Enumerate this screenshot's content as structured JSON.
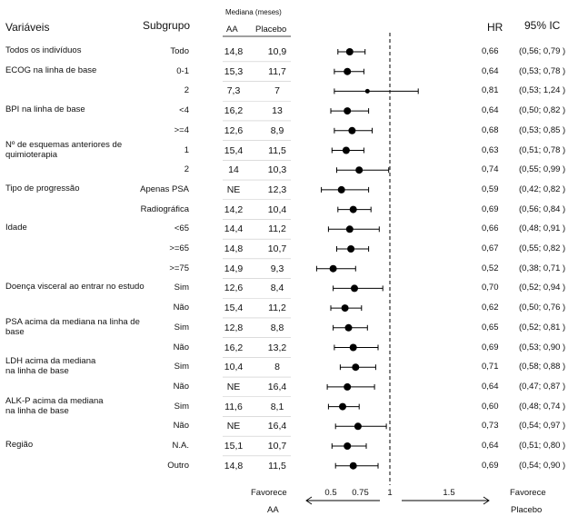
{
  "header": {
    "variables": "Variáveis",
    "subgroup": "Subgrupo",
    "median": "Mediana (meses)",
    "aa": "AA",
    "placebo": "Placebo",
    "hr": "HR",
    "ci95": "95% IC"
  },
  "footer": {
    "favors_left_1": "Favorece",
    "favors_left_2": "AA",
    "favors_right_1": "Favorece",
    "favors_right_2": "Placebo"
  },
  "chart_data": {
    "type": "forest",
    "x_ticks": [
      0.5,
      0.75,
      1,
      1.5
    ],
    "x_tick_labels": [
      "0.5",
      "0.75",
      "1",
      "1.5"
    ],
    "xlim": [
      0.4,
      1.6
    ],
    "reference_line": 1,
    "groups": [
      {
        "label": "Todos os indivíduos",
        "line2": "",
        "row": 0
      },
      {
        "label": "ECOG na linha de base",
        "line2": "",
        "row": 1
      },
      {
        "label": "BPI na linha de base",
        "line2": "",
        "row": 3
      },
      {
        "label": "Nº de esquemas anteriores de",
        "line2": "quimioterapia",
        "row": 5
      },
      {
        "label": "Tipo de progressão",
        "line2": "",
        "row": 7
      },
      {
        "label": "Idade",
        "line2": "",
        "row": 9
      },
      {
        "label": "Doença visceral ao entrar no estudo",
        "line2": "",
        "row": 12
      },
      {
        "label": "PSA acima da mediana na linha de",
        "line2": "base",
        "row": 14
      },
      {
        "label": "LDH acima da mediana",
        "line2": "na linha de base",
        "row": 16
      },
      {
        "label": "ALK-P acima da mediana",
        "line2": "na linha de base",
        "row": 18
      },
      {
        "label": "Região",
        "line2": "",
        "row": 20
      }
    ],
    "rows": [
      {
        "subgroup": "Todo",
        "aa": "14,8",
        "placebo": "10,9",
        "hr": 0.66,
        "hr_label": "0,66",
        "lo": 0.56,
        "hi": 0.79,
        "ci_label": "(0,56; 0,79 )"
      },
      {
        "subgroup": "0-1",
        "aa": "15,3",
        "placebo": "11,7",
        "hr": 0.64,
        "hr_label": "0,64",
        "lo": 0.53,
        "hi": 0.78,
        "ci_label": "(0,53; 0,78 )"
      },
      {
        "subgroup": "2",
        "aa": "7,3",
        "placebo": "7",
        "hr": 0.81,
        "hr_label": "0,81",
        "lo": 0.53,
        "hi": 1.24,
        "ci_label": "(0,53; 1,24 )"
      },
      {
        "subgroup": "<4",
        "aa": "16,2",
        "placebo": "13",
        "hr": 0.64,
        "hr_label": "0,64",
        "lo": 0.5,
        "hi": 0.82,
        "ci_label": "(0,50; 0,82 )"
      },
      {
        "subgroup": ">=4",
        "aa": "12,6",
        "placebo": "8,9",
        "hr": 0.68,
        "hr_label": "0,68",
        "lo": 0.53,
        "hi": 0.85,
        "ci_label": "(0,53; 0,85 )"
      },
      {
        "subgroup": "1",
        "aa": "15,4",
        "placebo": "11,5",
        "hr": 0.63,
        "hr_label": "0,63",
        "lo": 0.51,
        "hi": 0.78,
        "ci_label": "(0,51; 0,78 )"
      },
      {
        "subgroup": "2",
        "aa": "14",
        "placebo": "10,3",
        "hr": 0.74,
        "hr_label": "0,74",
        "lo": 0.55,
        "hi": 0.99,
        "ci_label": "(0,55; 0,99 )"
      },
      {
        "subgroup": "Apenas PSA",
        "aa": "NE",
        "placebo": "12,3",
        "hr": 0.59,
        "hr_label": "0,59",
        "lo": 0.42,
        "hi": 0.82,
        "ci_label": "(0,42; 0,82 )"
      },
      {
        "subgroup": "Radiográfica",
        "aa": "14,2",
        "placebo": "10,4",
        "hr": 0.69,
        "hr_label": "0,69",
        "lo": 0.56,
        "hi": 0.84,
        "ci_label": "(0,56; 0,84 )"
      },
      {
        "subgroup": "<65",
        "aa": "14,4",
        "placebo": "11,2",
        "hr": 0.66,
        "hr_label": "0,66",
        "lo": 0.48,
        "hi": 0.91,
        "ci_label": "(0,48; 0,91 )"
      },
      {
        "subgroup": ">=65",
        "aa": "14,8",
        "placebo": "10,7",
        "hr": 0.67,
        "hr_label": "0,67",
        "lo": 0.55,
        "hi": 0.82,
        "ci_label": "(0,55; 0,82 )"
      },
      {
        "subgroup": ">=75",
        "aa": "14,9",
        "placebo": "9,3",
        "hr": 0.52,
        "hr_label": "0,52",
        "lo": 0.38,
        "hi": 0.71,
        "ci_label": "(0,38; 0,71 )"
      },
      {
        "subgroup": "Sim",
        "aa": "12,6",
        "placebo": "8,4",
        "hr": 0.7,
        "hr_label": "0,70",
        "lo": 0.52,
        "hi": 0.94,
        "ci_label": "(0,52; 0,94 )"
      },
      {
        "subgroup": "Não",
        "aa": "15,4",
        "placebo": "11,2",
        "hr": 0.62,
        "hr_label": "0,62",
        "lo": 0.5,
        "hi": 0.76,
        "ci_label": "(0,50; 0,76 )"
      },
      {
        "subgroup": "Sim",
        "aa": "12,8",
        "placebo": "8,8",
        "hr": 0.65,
        "hr_label": "0,65",
        "lo": 0.52,
        "hi": 0.81,
        "ci_label": "(0,52; 0,81 )"
      },
      {
        "subgroup": "Não",
        "aa": "16,2",
        "placebo": "13,2",
        "hr": 0.69,
        "hr_label": "0,69",
        "lo": 0.53,
        "hi": 0.9,
        "ci_label": "(0,53; 0,90 )"
      },
      {
        "subgroup": "Sim",
        "aa": "10,4",
        "placebo": "8",
        "hr": 0.71,
        "hr_label": "0,71",
        "lo": 0.58,
        "hi": 0.88,
        "ci_label": "(0,58; 0,88 )"
      },
      {
        "subgroup": "Não",
        "aa": "NE",
        "placebo": "16,4",
        "hr": 0.64,
        "hr_label": "0,64",
        "lo": 0.47,
        "hi": 0.87,
        "ci_label": "(0,47; 0,87 )"
      },
      {
        "subgroup": "Sim",
        "aa": "11,6",
        "placebo": "8,1",
        "hr": 0.6,
        "hr_label": "0,60",
        "lo": 0.48,
        "hi": 0.74,
        "ci_label": "(0,48; 0,74 )"
      },
      {
        "subgroup": "Não",
        "aa": "NE",
        "placebo": "16,4",
        "hr": 0.73,
        "hr_label": "0,73",
        "lo": 0.54,
        "hi": 0.97,
        "ci_label": "(0,54; 0,97 )"
      },
      {
        "subgroup": "N.A.",
        "aa": "15,1",
        "placebo": "10,7",
        "hr": 0.64,
        "hr_label": "0,64",
        "lo": 0.51,
        "hi": 0.8,
        "ci_label": "(0,51; 0,80 )"
      },
      {
        "subgroup": "Outro",
        "aa": "14,8",
        "placebo": "11,5",
        "hr": 0.69,
        "hr_label": "0,69",
        "lo": 0.54,
        "hi": 0.9,
        "ci_label": "(0,54; 0,90 )"
      }
    ]
  }
}
